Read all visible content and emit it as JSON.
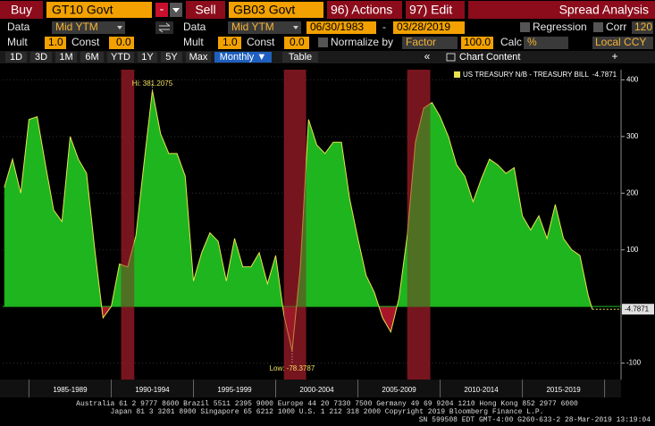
{
  "toolbar": {
    "buy": "Buy",
    "buy_ticker": "GT10 Govt",
    "minus": "-",
    "sell": "Sell",
    "sell_ticker": "GB03 Govt",
    "actions": "96) Actions",
    "edit": "97) Edit",
    "title": "Spread Analysis"
  },
  "settings": {
    "data_1": "Data",
    "field_1": "Mid YTM",
    "data_2": "Data",
    "field_2": "Mid YTM",
    "start_date": "06/30/1983",
    "date_sep": "-",
    "end_date": "03/28/2019",
    "regression": "Regression",
    "corr": "Corr",
    "corr_value": "120",
    "mult_1": "Mult",
    "mult_1_value": "1.0",
    "const_1": "Const",
    "const_1_value": "0.0",
    "mult_2": "Mult",
    "mult_2_value": "1.0",
    "const_2": "Const",
    "const_2_value": "0.0",
    "normalize": "Normalize by",
    "normalize_value": "Factor",
    "factor_value": "100.0",
    "calc": "Calc",
    "calc_value": "%",
    "currency": "Local CCY"
  },
  "tabs": [
    "1D",
    "3D",
    "1M",
    "6M",
    "YTD",
    "1Y",
    "5Y",
    "Max",
    "Monthly ▼",
    "Table"
  ],
  "panel": {
    "collapse": "«",
    "chart_content": "Chart Content",
    "add": "+"
  },
  "chart_data": {
    "type": "area",
    "series": [
      {
        "name": "US TREASURY N/B - TREASURY BILL",
        "color": "#1fb51f",
        "negative_color": "#a8162a",
        "line_color": "#e9e24e",
        "x": [
          1983.5,
          1984,
          1984.5,
          1985,
          1985.5,
          1986,
          1986.5,
          1987,
          1987.5,
          1988,
          1988.5,
          1989,
          1989.5,
          1990,
          1990.5,
          1991,
          1991.5,
          1992,
          1992.5,
          1993,
          1993.5,
          1994,
          1994.5,
          1995,
          1995.5,
          1996,
          1996.5,
          1997,
          1997.5,
          1998,
          1998.5,
          1999,
          1999.5,
          2000,
          2000.5,
          2001,
          2001.5,
          2002,
          2002.5,
          2003,
          2003.5,
          2004,
          2004.5,
          2005,
          2005.5,
          2006,
          2006.5,
          2007,
          2007.5,
          2008,
          2008.5,
          2009,
          2009.5,
          2010,
          2010.5,
          2011,
          2011.5,
          2012,
          2012.5,
          2013,
          2013.5,
          2014,
          2014.5,
          2015,
          2015.5,
          2016,
          2016.5,
          2017,
          2017.5,
          2018,
          2018.5,
          2019,
          2019.25
        ],
        "values": [
          210,
          260,
          200,
          330,
          335,
          250,
          170,
          150,
          300,
          260,
          235,
          100,
          -20,
          0,
          75,
          70,
          125,
          255,
          381.2075,
          305,
          270,
          270,
          230,
          45,
          95,
          130,
          115,
          45,
          120,
          70,
          70,
          95,
          40,
          90,
          -15,
          -78.3787,
          70,
          330,
          285,
          270,
          290,
          290,
          190,
          120,
          55,
          25,
          -20,
          -45,
          15,
          125,
          290,
          350,
          360,
          335,
          300,
          250,
          230,
          185,
          225,
          260,
          250,
          235,
          245,
          160,
          135,
          160,
          120,
          180,
          120,
          100,
          90,
          20,
          -4.7871
        ]
      }
    ],
    "shaded_periods": [
      [
        1990.6,
        1991.4
      ],
      [
        2000.5,
        2001.85
      ],
      [
        2008.0,
        2009.4
      ]
    ],
    "annotations": [
      {
        "label": "Hi: 381.2075",
        "x": 1992.5,
        "y": 381.2075
      },
      {
        "label": "Low: -78.3787",
        "x": 2001,
        "y": -78.3787
      }
    ],
    "xlim": [
      1983.4,
      2021.0
    ],
    "xticks": [
      {
        "value": 1987.5,
        "label": "1985-1989"
      },
      {
        "value": 1992.5,
        "label": "1990-1994"
      },
      {
        "value": 1997.5,
        "label": "1995-1999"
      },
      {
        "value": 2002.5,
        "label": "2000-2004"
      },
      {
        "value": 2007.5,
        "label": "2005-2009"
      },
      {
        "value": 2012.5,
        "label": "2010-2014"
      },
      {
        "value": 2017.5,
        "label": "2015-2019"
      }
    ],
    "ylim": [
      -129,
      418
    ],
    "yticks": [
      -100,
      100,
      200,
      300,
      400
    ],
    "grid": true,
    "legend": "top-right"
  },
  "footer": {
    "line_1": "Australia 61 2 9777 8600 Brazil 5511 2395 9000 Europe 44 20 7330 7500 Germany 49 69 9204 1210 Hong Kong 852 2977 6000",
    "line_2": "Japan 81 3 3201 8900         Singapore 65 6212 1000         U.S. 1 212 318 2000         Copyright 2019 Bloomberg Finance L.P.",
    "line_3": "SN 599508 EDT  GMT-4:00 G260-633-2 28-Mar-2019 13:19:04"
  }
}
